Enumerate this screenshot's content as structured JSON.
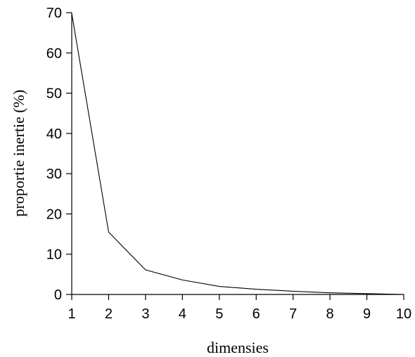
{
  "chart_data": {
    "type": "line",
    "title": "",
    "xlabel": "dimensies",
    "ylabel": "proportie inertie (%)",
    "x": [
      1,
      2,
      3,
      4,
      5,
      6,
      7,
      8,
      9,
      10
    ],
    "series": [
      {
        "values": [
          69.8,
          15.5,
          6.1,
          3.6,
          2.0,
          1.3,
          0.8,
          0.4,
          0.2,
          0.0
        ]
      }
    ],
    "xlim": [
      1,
      10
    ],
    "ylim": [
      0,
      70
    ],
    "xticks": [
      "1",
      "2",
      "3",
      "4",
      "5",
      "6",
      "7",
      "8",
      "9",
      "10"
    ],
    "yticks": [
      "0",
      "10",
      "20",
      "30",
      "40",
      "50",
      "60",
      "70"
    ],
    "grid": false,
    "colors": {
      "line": "#000000",
      "axes": "#000000"
    }
  }
}
